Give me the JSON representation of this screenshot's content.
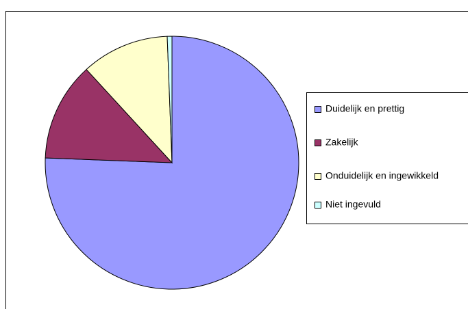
{
  "chart_data": {
    "type": "pie",
    "categories": [
      "Duidelijk en prettig",
      "Zakelijk",
      "Onduidelijk en ingewikkeld",
      "Niet ingevuld"
    ],
    "values": [
      75.6,
      12.6,
      11.2,
      0.6
    ],
    "colors": [
      "#9999ff",
      "#993366",
      "#ffffcc",
      "#ccffff"
    ],
    "legend": "right"
  }
}
